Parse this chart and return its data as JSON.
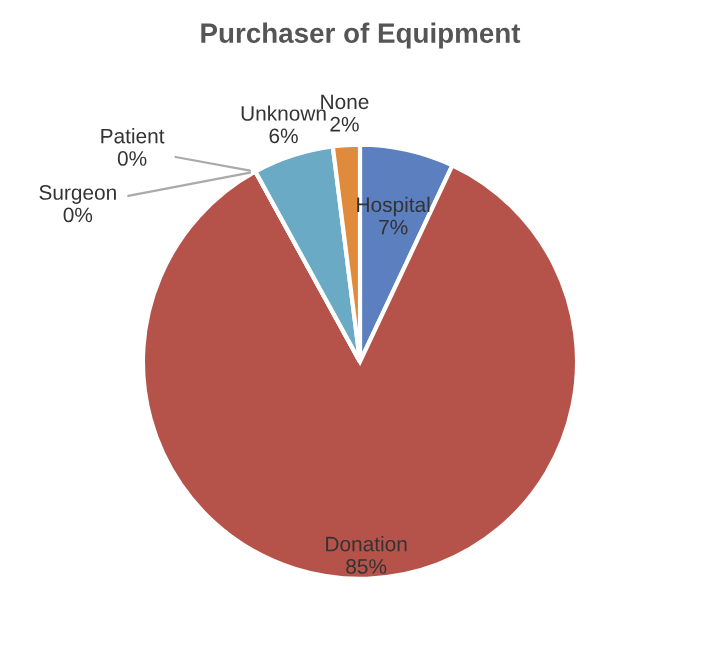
{
  "chart_data": {
    "type": "pie",
    "title": "Purchaser of Equipment",
    "categories": [
      "Hospital",
      "Donation",
      "Surgeon",
      "Patient",
      "Unknown",
      "None"
    ],
    "values": [
      7,
      85,
      0,
      0,
      6,
      2
    ],
    "value_labels": [
      "7%",
      "85%",
      "0%",
      "0%",
      "6%",
      "2%"
    ],
    "colors": [
      "#5b7fbf",
      "#b5534a",
      "#9b8cc4",
      "#8fb35a",
      "#6aaac5",
      "#e08a3c"
    ],
    "legend": false
  }
}
